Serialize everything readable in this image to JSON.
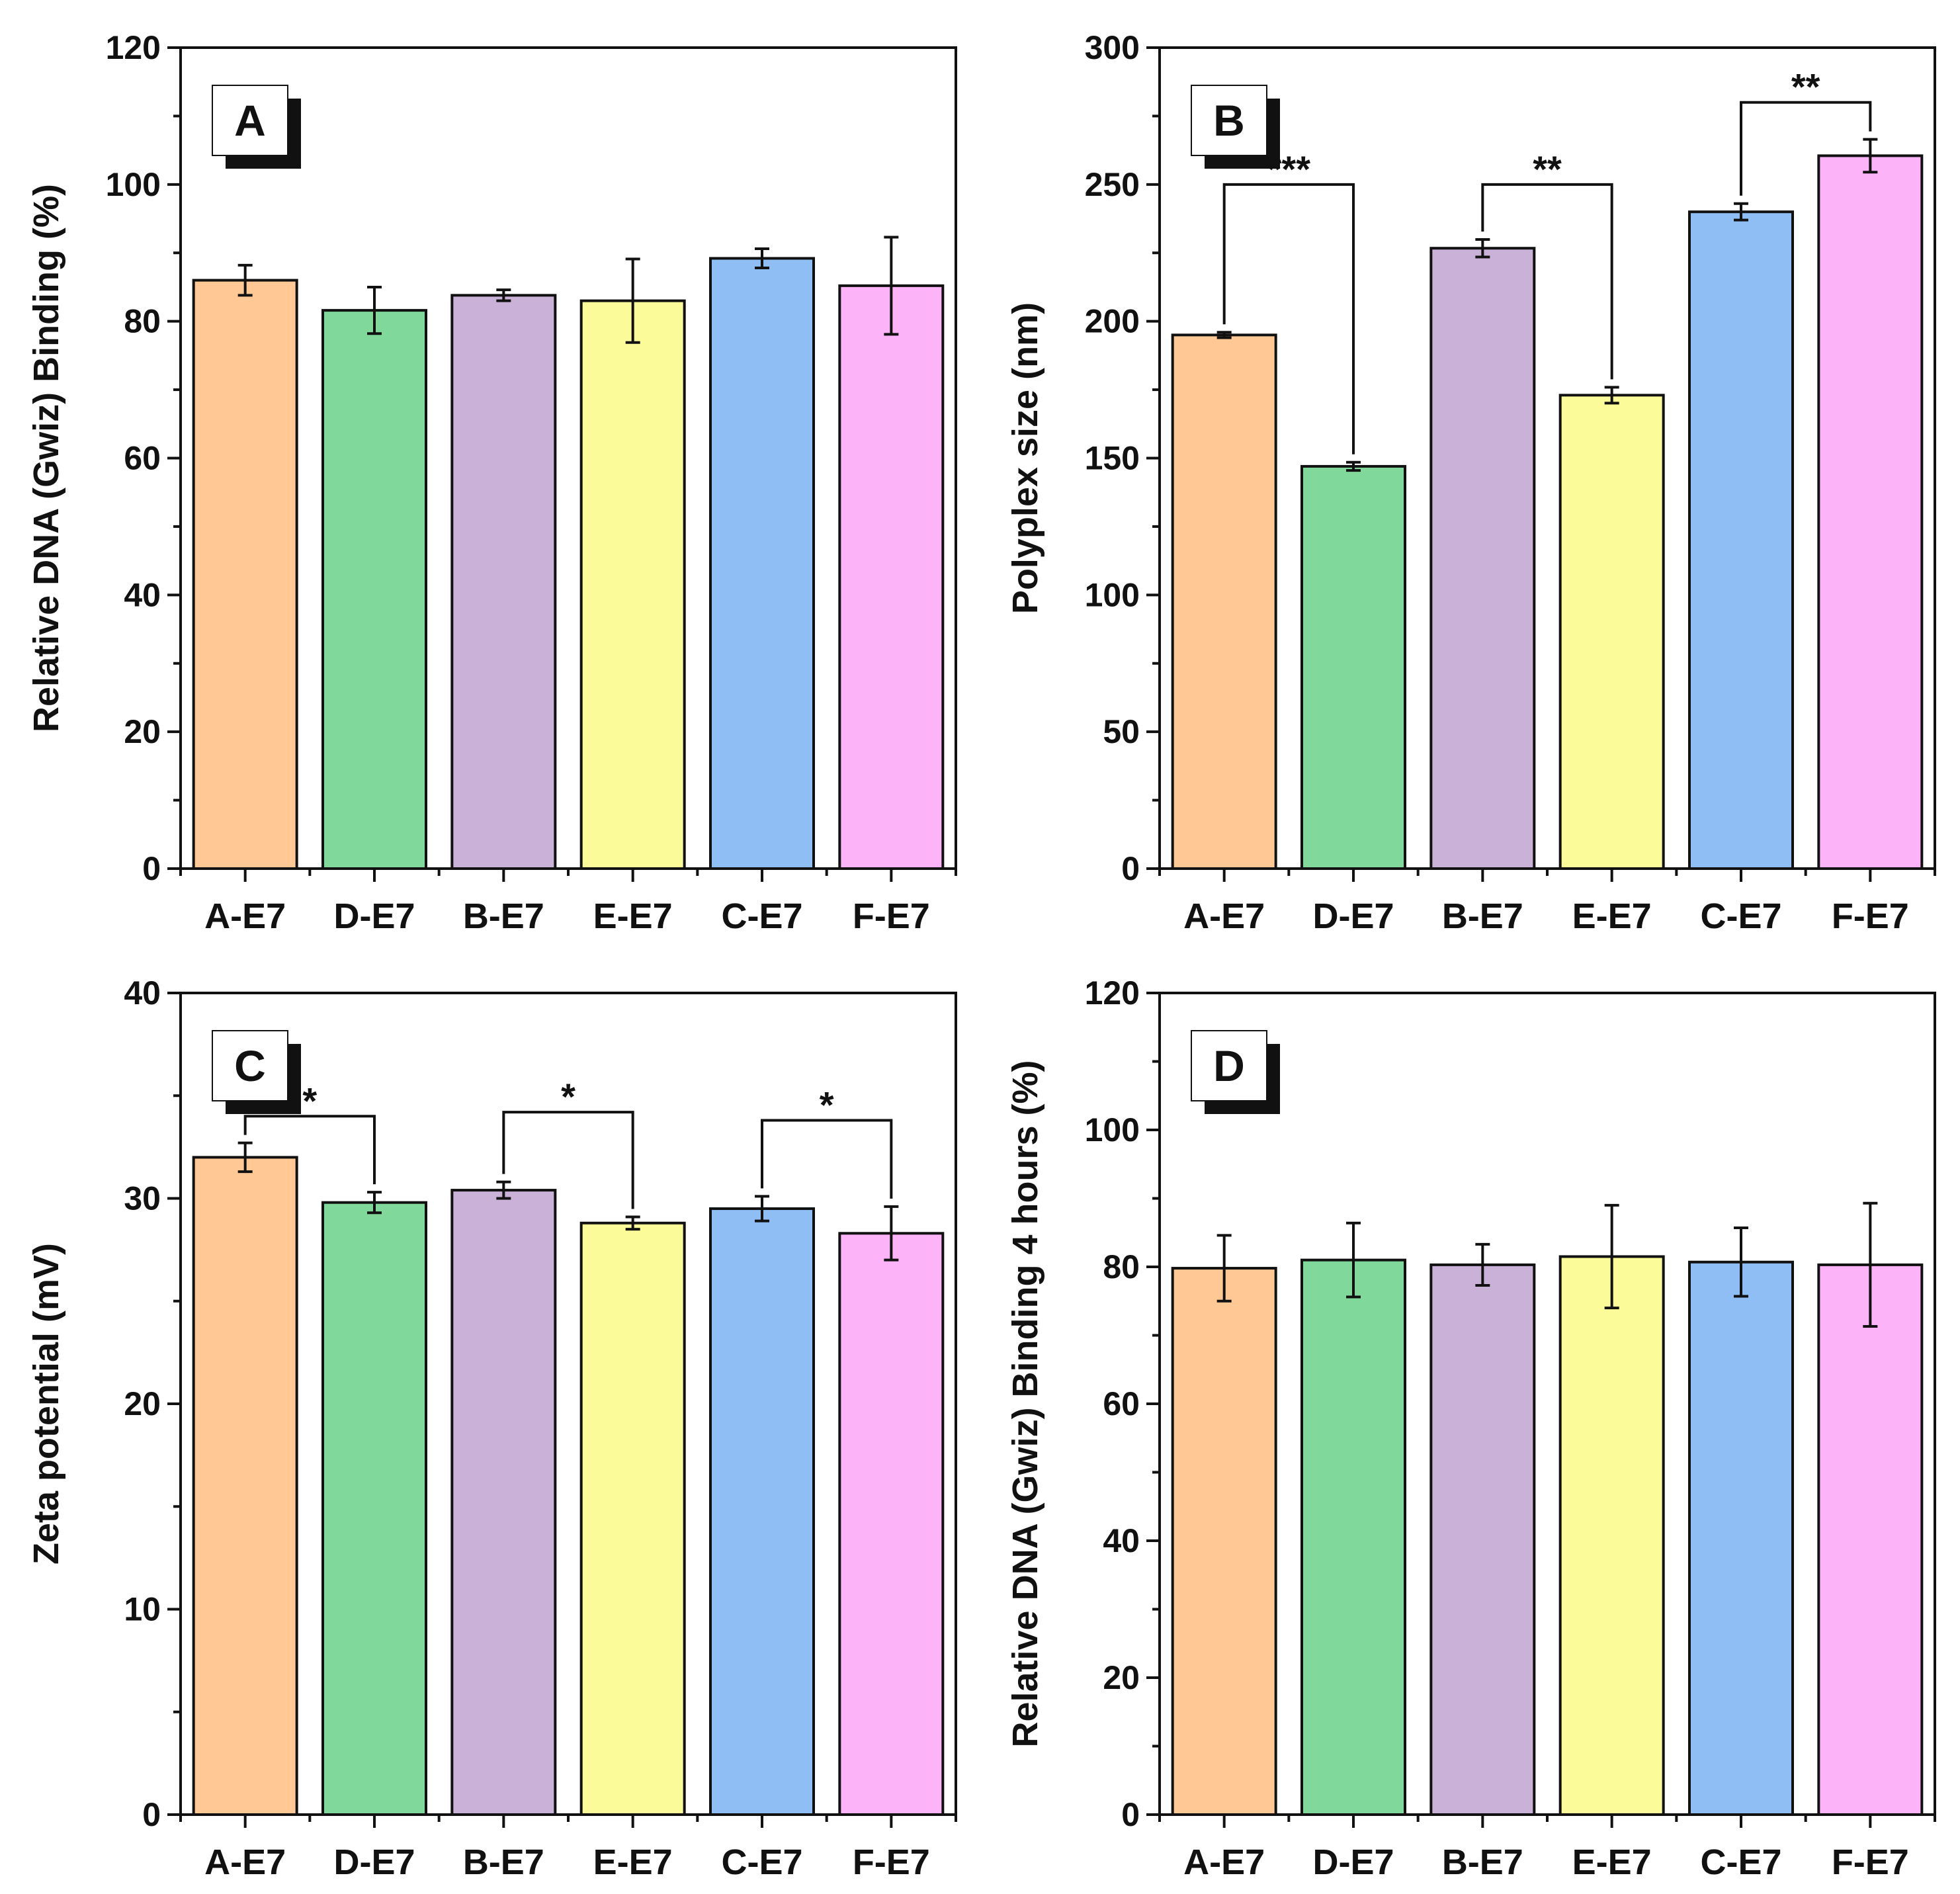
{
  "chart_data": [
    {
      "panel": "A",
      "type": "bar",
      "categories": [
        "A-E7",
        "D-E7",
        "B-E7",
        "E-E7",
        "C-E7",
        "F-E7"
      ],
      "values": [
        86,
        81.6,
        83.8,
        83,
        89.2,
        85.2
      ],
      "errors": [
        2.2,
        3.4,
        0.8,
        6.1,
        1.4,
        7.1
      ],
      "ylabel": "Relative DNA (Gwiz) Binding (%)",
      "ylim": [
        0,
        120
      ],
      "yticks": [
        "0",
        "20",
        "40",
        "60",
        "80",
        "100",
        "120"
      ],
      "significance": []
    },
    {
      "panel": "B",
      "type": "bar",
      "categories": [
        "A-E7",
        "D-E7",
        "B-E7",
        "E-E7",
        "C-E7",
        "F-E7"
      ],
      "values": [
        195,
        147,
        226.7,
        173,
        240,
        260.5
      ],
      "errors": [
        1,
        1.5,
        3.2,
        2.9,
        3,
        6
      ],
      "ylabel": "Polyplex size (nm)",
      "ylim": [
        0,
        300
      ],
      "yticks": [
        "0",
        "50",
        "100",
        "150",
        "200",
        "250",
        "300"
      ],
      "significance": [
        {
          "from": 0,
          "to": 1,
          "level": 250,
          "label": "***"
        },
        {
          "from": 2,
          "to": 3,
          "level": 250,
          "label": "**"
        },
        {
          "from": 4,
          "to": 5,
          "level": 280,
          "label": "**"
        }
      ]
    },
    {
      "panel": "C",
      "type": "bar",
      "categories": [
        "A-E7",
        "D-E7",
        "B-E7",
        "E-E7",
        "C-E7",
        "F-E7"
      ],
      "values": [
        32,
        29.8,
        30.4,
        28.8,
        29.5,
        28.3
      ],
      "errors": [
        0.7,
        0.5,
        0.4,
        0.3,
        0.6,
        1.3
      ],
      "ylabel": "Zeta potential (mV)",
      "ylim": [
        0,
        40
      ],
      "yticks": [
        "0",
        "10",
        "20",
        "30",
        "40"
      ],
      "significance": [
        {
          "from": 0,
          "to": 1,
          "level": 34,
          "label": "*"
        },
        {
          "from": 2,
          "to": 3,
          "level": 34.2,
          "label": "*"
        },
        {
          "from": 4,
          "to": 5,
          "level": 33.8,
          "label": "*"
        }
      ]
    },
    {
      "panel": "D",
      "type": "bar",
      "categories": [
        "A-E7",
        "D-E7",
        "B-E7",
        "E-E7",
        "C-E7",
        "F-E7"
      ],
      "values": [
        79.8,
        81,
        80.3,
        81.5,
        80.7,
        80.3
      ],
      "errors": [
        4.8,
        5.4,
        3,
        7.5,
        5,
        9
      ],
      "ylabel": "Relative DNA (Gwiz) Binding 4 hours (%)",
      "ylim": [
        0,
        120
      ],
      "yticks": [
        "0",
        "20",
        "40",
        "60",
        "80",
        "100",
        "120"
      ],
      "significance": []
    }
  ],
  "colors": [
    "#FFC894",
    "#80D99A",
    "#C9B1D7",
    "#FCFB9A",
    "#8FBEF5",
    "#FCB3F8"
  ]
}
